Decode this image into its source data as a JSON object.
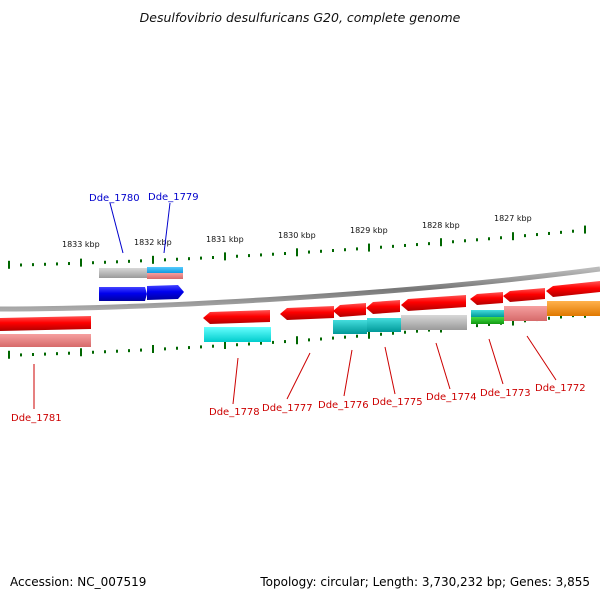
{
  "title": "Desulfovibrio desulfuricans G20, complete genome",
  "footer": {
    "accession": "Accession: NC_007519",
    "stats": "Topology: circular; Length: 3,730,232 bp; Genes: 3,855"
  },
  "kbp_labels": [
    "1833 kbp",
    "1832 kbp",
    "1831 kbp",
    "1830 kbp",
    "1829 kbp",
    "1828 kbp",
    "1827 kbp"
  ],
  "gene_labels": {
    "top": [
      "Dde_1780",
      "Dde_1779"
    ],
    "bottom": [
      "Dde_1781",
      "Dde_1778",
      "Dde_1777",
      "Dde_1776",
      "Dde_1775",
      "Dde_1774",
      "Dde_1773",
      "Dde_1772"
    ]
  },
  "colors": {
    "forward_label": "#0000cc",
    "reverse_label": "#cc0000",
    "backbone": "#888888",
    "ticks": "#006600"
  }
}
